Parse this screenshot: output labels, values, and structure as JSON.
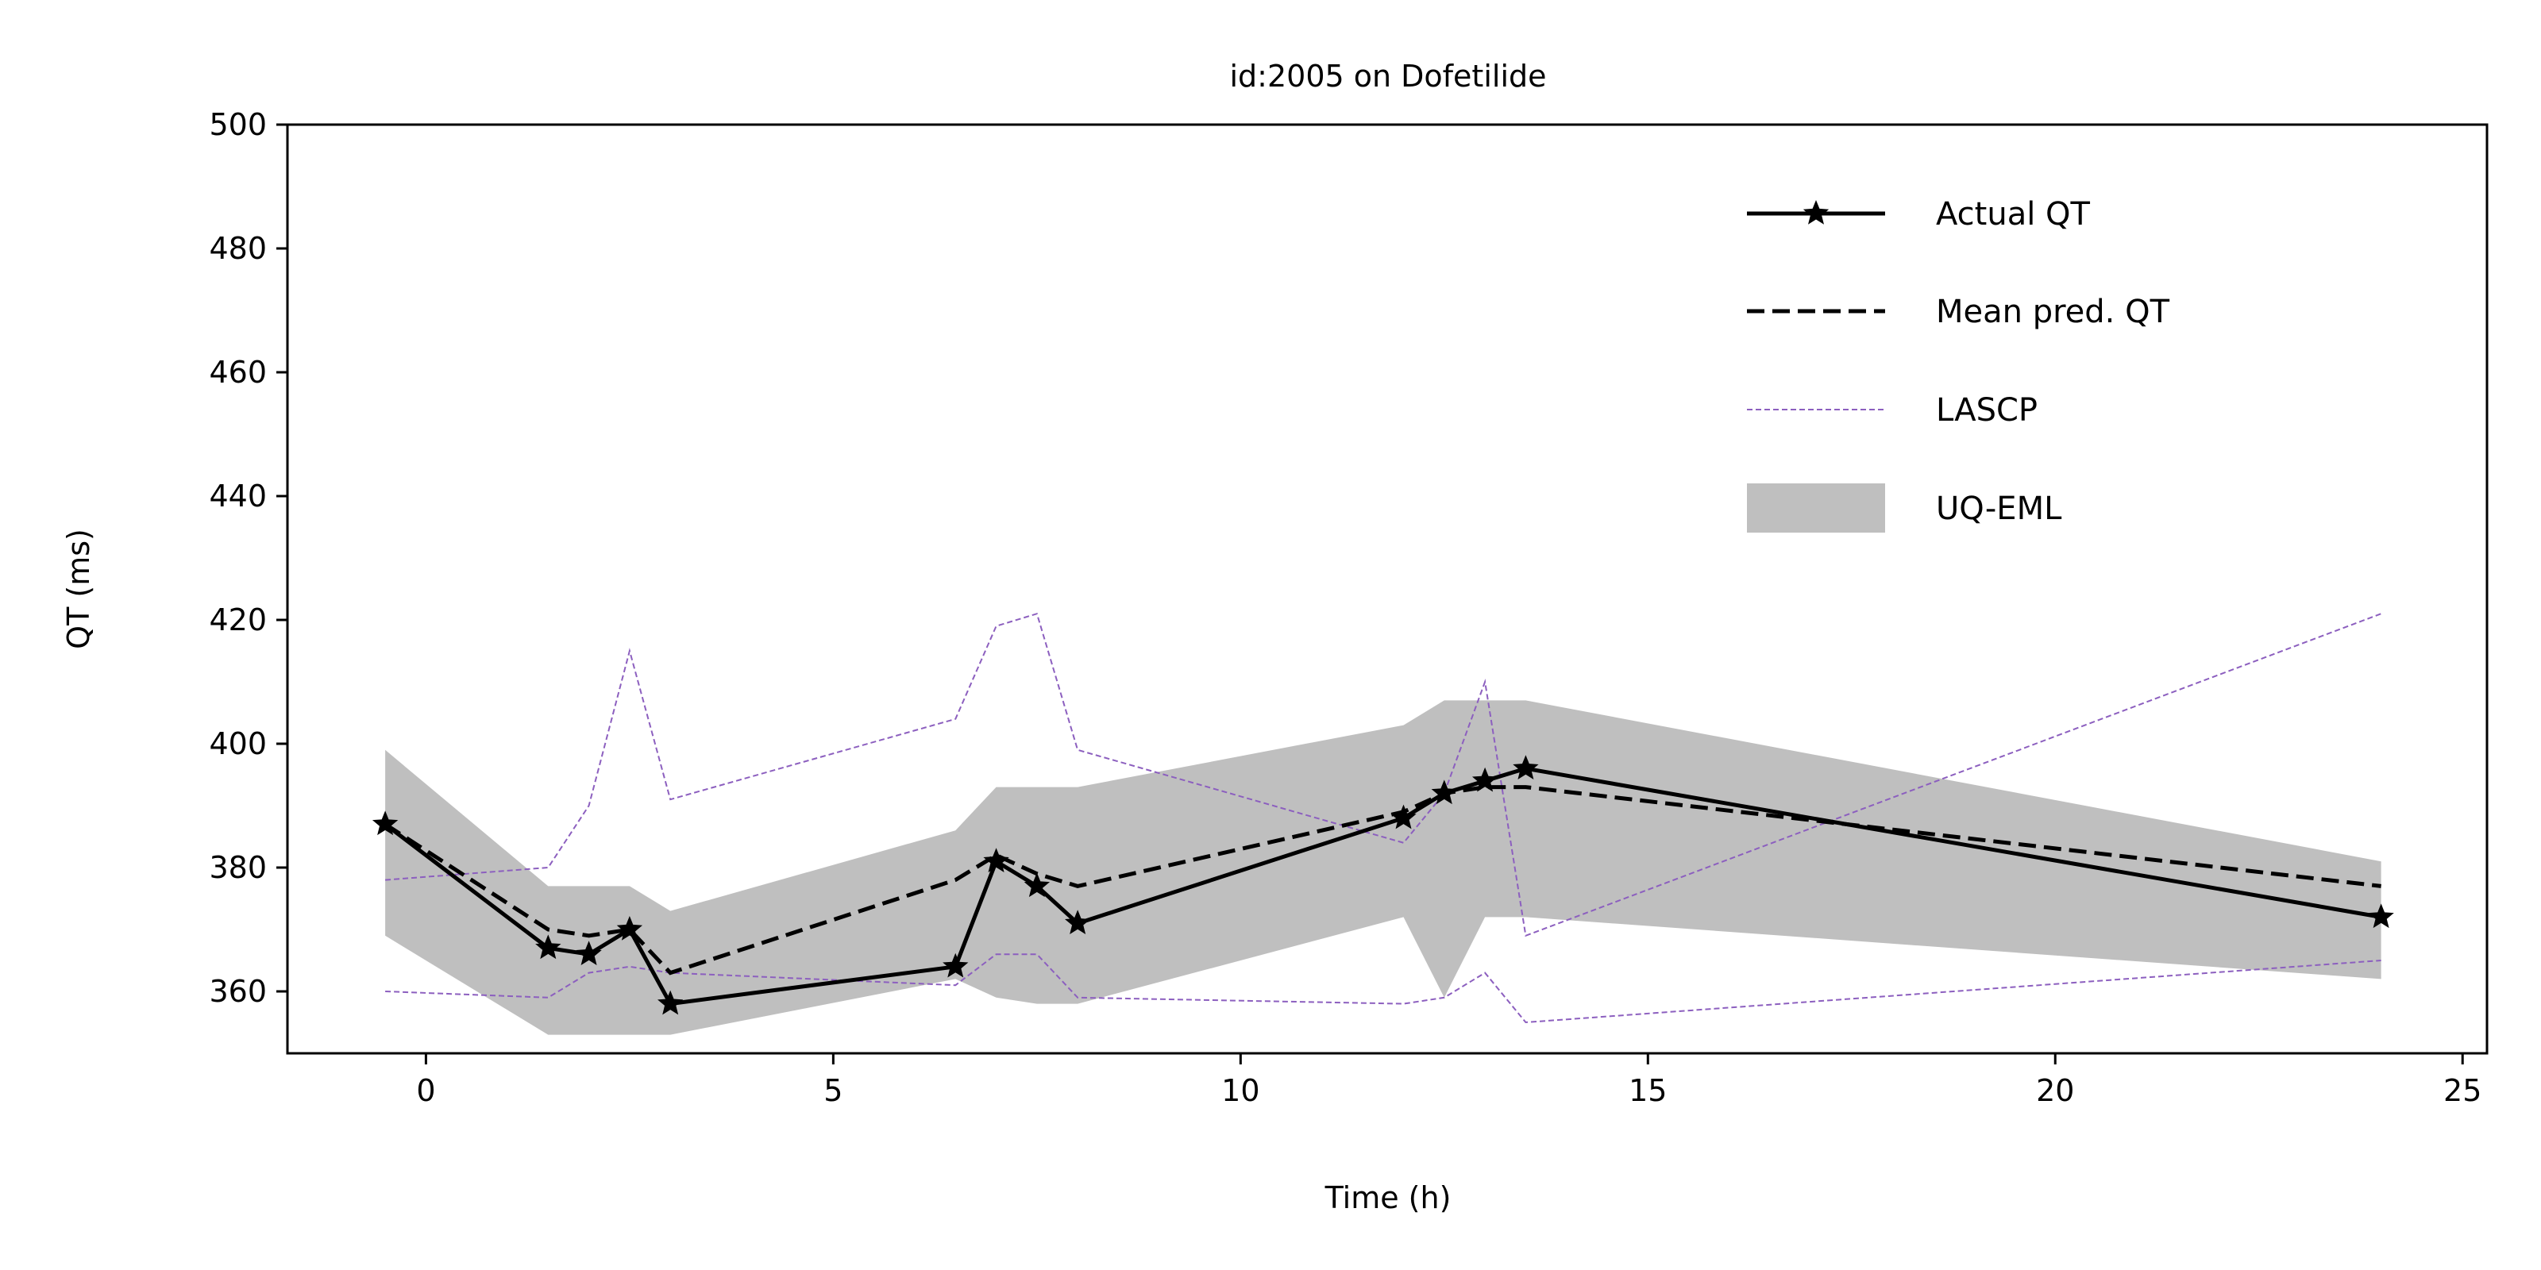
{
  "chart_data": {
    "type": "line",
    "title": "id:2005 on Dofetilide",
    "xlabel": "Time (h)",
    "ylabel": "QT (ms)",
    "xlim": [
      -1.7,
      25.3
    ],
    "ylim": [
      350,
      500
    ],
    "x_ticks": [
      0,
      5,
      10,
      15,
      20,
      25
    ],
    "y_ticks": [
      360,
      380,
      400,
      420,
      440,
      460,
      480,
      500
    ],
    "x_tick_labels": [
      "0",
      "5",
      "10",
      "15",
      "20",
      "25"
    ],
    "y_tick_labels": [
      "360",
      "380",
      "400",
      "420",
      "440",
      "460",
      "480",
      "500"
    ],
    "grid": false,
    "legend_position": "top-right",
    "x": [
      -0.5,
      1.5,
      2.0,
      2.5,
      3.0,
      6.5,
      7.0,
      7.5,
      8.0,
      12.0,
      12.5,
      13.0,
      13.5,
      24.0
    ],
    "series": [
      {
        "name": "Actual QT",
        "style": "solid-star-marker",
        "color": "#000000",
        "values": [
          387,
          367,
          366,
          370,
          358,
          364,
          381,
          377,
          371,
          388,
          392,
          394,
          396,
          372
        ]
      },
      {
        "name": "Mean pred. QT",
        "style": "dashed",
        "color": "#000000",
        "values": [
          387,
          370,
          369,
          370,
          363,
          378,
          382,
          379,
          377,
          389,
          392,
          393,
          393,
          377
        ]
      },
      {
        "name": "LASCP",
        "style": "thin-dashed-band-bounds",
        "color": "#8c5fbf",
        "upper": [
          378,
          380,
          390,
          415,
          391,
          404,
          419,
          421,
          399,
          384,
          392,
          410,
          369,
          421
        ],
        "lower": [
          360,
          359,
          363,
          364,
          363,
          361,
          366,
          366,
          359,
          358,
          359,
          363,
          355,
          365
        ]
      },
      {
        "name": "UQ-EML",
        "style": "filled-band",
        "color": "#bfbfbf",
        "upper": [
          399,
          377,
          377,
          377,
          373,
          386,
          393,
          393,
          393,
          403,
          407,
          407,
          407,
          381
        ],
        "lower": [
          369,
          353,
          353,
          353,
          353,
          362,
          359,
          358,
          358,
          372,
          359,
          372,
          372,
          362
        ]
      }
    ]
  }
}
